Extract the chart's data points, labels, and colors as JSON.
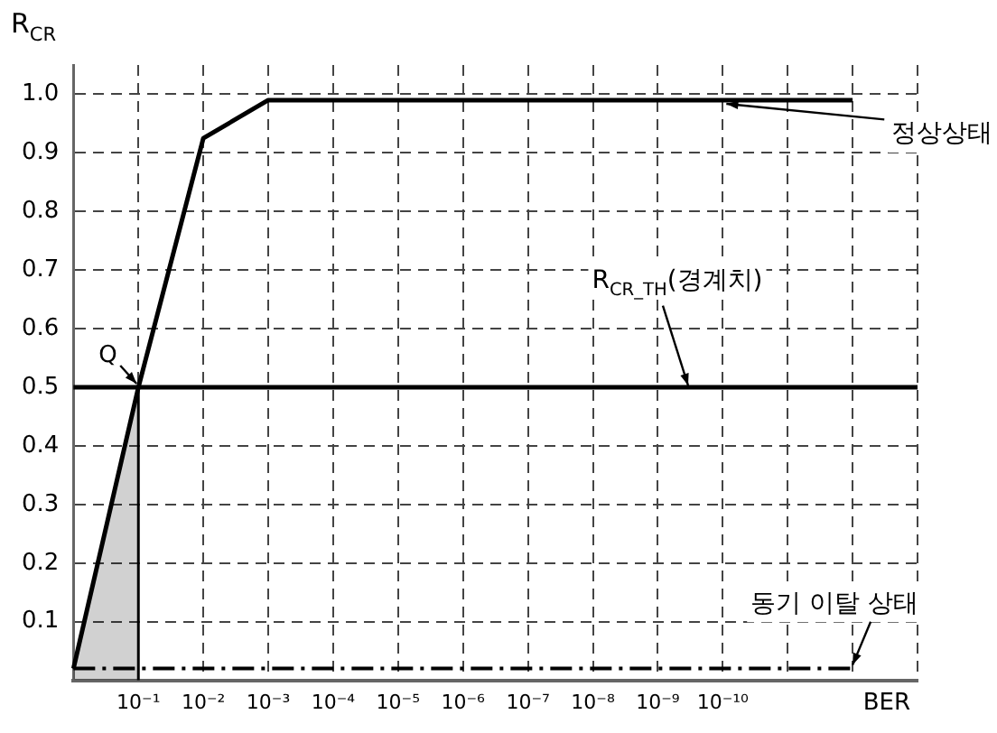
{
  "chart_data": {
    "type": "line",
    "xlabel": "BER",
    "ylabel": "R$_{CR}$",
    "categories": [
      null,
      "10⁻¹",
      "10⁻²",
      "10⁻³",
      "10⁻⁴",
      "10⁻⁵",
      "10⁻⁶",
      "10⁻⁷",
      "10⁻⁸",
      "10⁻⁹",
      "10⁻¹⁰",
      null,
      null,
      null
    ],
    "series": [
      {
        "type": "area",
        "color": "#000000",
        "values": [
          0.02,
          0.5,
          null,
          null,
          null,
          null,
          null,
          null,
          null,
          null,
          null,
          null,
          null,
          null
        ]
      },
      {
        "color": "#000000",
        "values": [
          0.02,
          0.5,
          0.925,
          0.99,
          0.99,
          0.99,
          0.99,
          0.99,
          0.99,
          0.99,
          0.99,
          0.99,
          0.99,
          null
        ]
      }
    ],
    "ylim": [
      0,
      1.05
    ],
    "yticks": [
      0.1,
      0.2,
      0.3,
      0.4,
      0.5,
      0.6,
      0.7,
      0.8,
      0.9,
      {
        "value": 1,
        "label": "1.0"
      }
    ],
    "ref_lines": [
      {
        "axis": "y",
        "value": 0.5,
        "label": "R$_{CR_TH}$(경계치)",
        "color": "#000000",
        "line_style": "solid"
      },
      {
        "axis": "y",
        "value": 0.02,
        "label": "동기 이탈 상태",
        "color": "#000000",
        "line_style": "dashed"
      }
    ],
    "annotations": [
      {
        "text": "Q",
        "x": "10⁻¹",
        "y": 0.5
      },
      {
        "text": "정상상태",
        "x": "10⁻¹⁰",
        "y": 0.99
      }
    ],
    "grid": true,
    "legend": false,
    "marker": "none"
  }
}
